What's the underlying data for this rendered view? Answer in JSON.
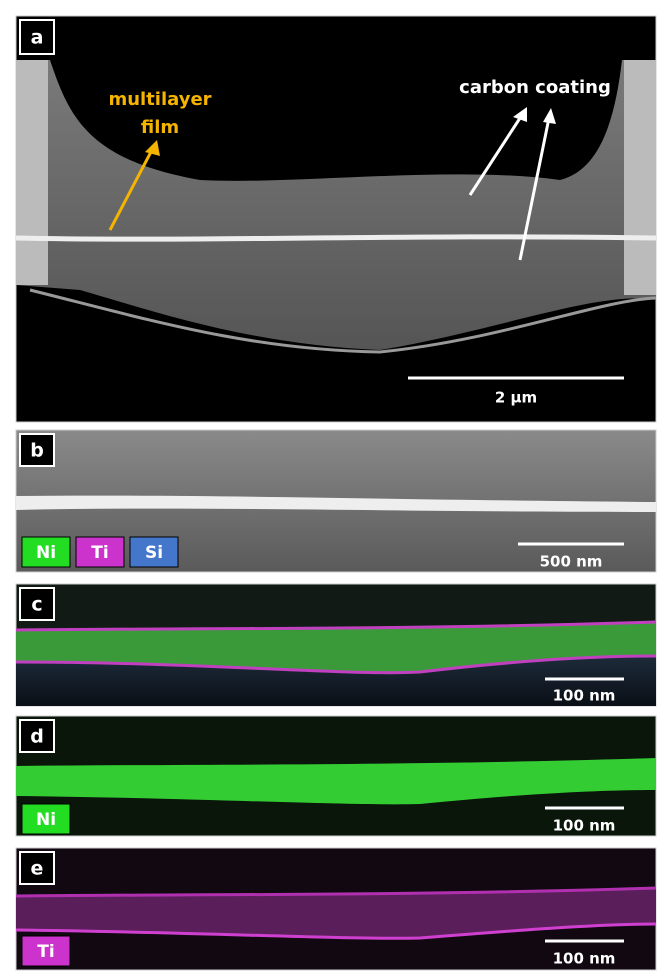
{
  "panels": [
    {
      "label": "a",
      "film_label": [
        "multilayer",
        "film"
      ],
      "coating_label": "carbon coating",
      "scale_bar": "2 µm"
    },
    {
      "label": "b",
      "legend": [
        "Ni",
        "Ti",
        "Si"
      ],
      "scale_bar": "500 nm"
    },
    {
      "label": "c",
      "scale_bar": "100 nm"
    },
    {
      "label": "d",
      "element": "Ni",
      "scale_bar": "100 nm"
    },
    {
      "label": "e",
      "element": "Ti",
      "scale_bar": "100 nm"
    }
  ]
}
